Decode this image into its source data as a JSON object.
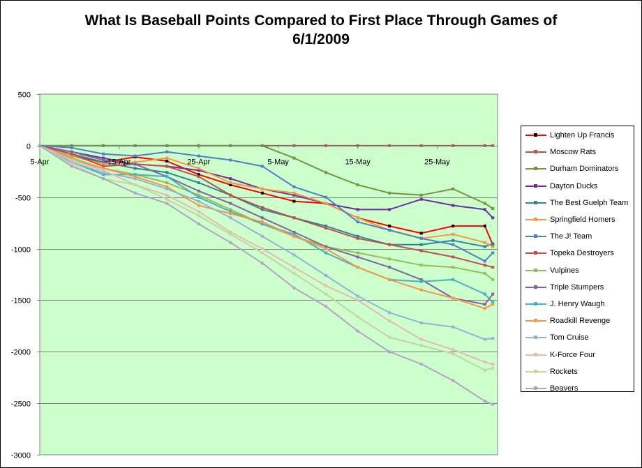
{
  "chart_data": {
    "type": "line",
    "title": "What Is Baseball Points Compared to First Place Through Games of 6/1/2009",
    "title_lines": [
      "What Is Baseball Points Compared to First Place Through Games of",
      "6/1/2009"
    ],
    "plot_background": "#ccffcc",
    "grid": true,
    "legend_position": "right",
    "ylim": [
      -3000,
      500
    ],
    "yticks": [
      500,
      0,
      -500,
      -1000,
      -1500,
      -2000,
      -2500,
      -3000
    ],
    "yticks_labels": [
      "500",
      "0",
      "-500",
      "-1000",
      "-1500",
      "-2000",
      "-2500",
      "-3000"
    ],
    "x_start": "4/5/2009",
    "x_end": "6/1/2009",
    "xticks": [
      "5-Apr",
      "15-Apr",
      "25-Apr",
      "5-May",
      "15-May",
      "25-May"
    ],
    "xtick_days": [
      0,
      10,
      20,
      30,
      40,
      50
    ],
    "x_days": [
      0,
      4,
      8,
      12,
      16,
      20,
      24,
      28,
      32,
      36,
      40,
      44,
      48,
      52,
      56,
      57
    ],
    "series": [
      {
        "name": "Lighten Up Francis",
        "color": "#ff0000",
        "marker_color": "#000000",
        "values": [
          0,
          -100,
          -160,
          -110,
          -150,
          -280,
          -380,
          -460,
          -540,
          -560,
          -700,
          -780,
          -850,
          -780,
          -780,
          -960
        ]
      },
      {
        "name": "Moscow Rats",
        "color": "#c0504d",
        "marker_color": "#c0504d",
        "values": [
          0,
          0,
          0,
          0,
          0,
          0,
          0,
          0,
          0,
          0,
          0,
          0,
          0,
          0,
          0,
          0
        ]
      },
      {
        "name": "Durham Dominators",
        "color": "#77933c",
        "marker_color": "#77933c",
        "values": [
          0,
          0,
          0,
          0,
          0,
          0,
          0,
          0,
          -120,
          -260,
          -380,
          -460,
          -480,
          -420,
          -560,
          -610
        ]
      },
      {
        "name": "Dayton Ducks",
        "color": "#7030a0",
        "marker_color": "#7030a0",
        "values": [
          0,
          -60,
          -120,
          -180,
          -200,
          -240,
          -320,
          -420,
          -480,
          -560,
          -620,
          -620,
          -520,
          -580,
          -620,
          -700
        ]
      },
      {
        "name": "The Best Guelph Team",
        "color": "#31849b",
        "marker_color": "#31849b",
        "values": [
          0,
          -80,
          -160,
          -220,
          -260,
          -360,
          -480,
          -620,
          -700,
          -780,
          -880,
          -960,
          -960,
          -920,
          -980,
          -950
        ]
      },
      {
        "name": "Springfield Homers",
        "color": "#f79646",
        "marker_color": "#f79646",
        "values": [
          0,
          -100,
          -180,
          -160,
          -120,
          -220,
          -360,
          -420,
          -460,
          -560,
          -700,
          -820,
          -900,
          -860,
          -940,
          -980
        ]
      },
      {
        "name": "The J! Team",
        "color": "#4f81bd",
        "marker_color": "#4f81bd",
        "values": [
          0,
          -20,
          -80,
          -100,
          -60,
          -100,
          -140,
          -200,
          -400,
          -500,
          -740,
          -820,
          -900,
          -960,
          -1120,
          -1040
        ]
      },
      {
        "name": "Topeka Destroyers",
        "color": "#c0504d",
        "marker_color": "#c0504d",
        "values": [
          0,
          -80,
          -200,
          -180,
          -200,
          -300,
          -480,
          -600,
          -700,
          -800,
          -900,
          -960,
          -1020,
          -1080,
          -1160,
          -1180
        ]
      },
      {
        "name": "Vulpines",
        "color": "#9bbb59",
        "marker_color": "#9bbb59",
        "values": [
          0,
          -120,
          -220,
          -280,
          -360,
          -480,
          -620,
          -760,
          -880,
          -980,
          -1040,
          -1100,
          -1160,
          -1180,
          -1240,
          -1300
        ]
      },
      {
        "name": "Triple Stumpers",
        "color": "#8064a2",
        "marker_color": "#8064a2",
        "values": [
          0,
          -60,
          -140,
          -180,
          -300,
          -440,
          -560,
          -700,
          -840,
          -980,
          -1080,
          -1180,
          -1300,
          -1480,
          -1540,
          -1440
        ]
      },
      {
        "name": "J. Henry Waugh",
        "color": "#4bacc6",
        "marker_color": "#4bacc6",
        "values": [
          0,
          -160,
          -280,
          -280,
          -300,
          -500,
          -640,
          -760,
          -860,
          -1040,
          -1180,
          -1300,
          -1320,
          -1300,
          -1440,
          -1520
        ]
      },
      {
        "name": "Roadkill Revenge",
        "color": "#f79646",
        "marker_color": "#f79646",
        "values": [
          0,
          -140,
          -220,
          -300,
          -400,
          -580,
          -660,
          -740,
          -880,
          -1000,
          -1180,
          -1300,
          -1400,
          -1480,
          -1580,
          -1540
        ]
      },
      {
        "name": "Tom Cruise",
        "color": "#95b3d7",
        "marker_color": "#95b3d7",
        "values": [
          0,
          -160,
          -260,
          -320,
          -420,
          -540,
          -700,
          -880,
          -1060,
          -1260,
          -1460,
          -1620,
          -1720,
          -1760,
          -1880,
          -1870
        ]
      },
      {
        "name": "K-Force Four",
        "color": "#e6b9b8",
        "marker_color": "#e6b9b8",
        "values": [
          0,
          -140,
          -240,
          -380,
          -480,
          -640,
          -840,
          -1000,
          -1180,
          -1360,
          -1500,
          -1700,
          -1880,
          -1980,
          -2100,
          -2120
        ]
      },
      {
        "name": "Rockets",
        "color": "#c3d69b",
        "marker_color": "#c3d69b",
        "values": [
          0,
          -180,
          -320,
          -380,
          -520,
          -680,
          -860,
          -1040,
          -1240,
          -1440,
          -1660,
          -1860,
          -1940,
          -2020,
          -2180,
          -2160
        ]
      },
      {
        "name": "Beavers",
        "color": "#b3a2c7",
        "marker_color": "#b3a2c7",
        "values": [
          0,
          -200,
          -320,
          -460,
          -560,
          -760,
          -940,
          -1140,
          -1380,
          -1560,
          -1800,
          -2000,
          -2120,
          -2280,
          -2480,
          -2510
        ]
      }
    ]
  }
}
